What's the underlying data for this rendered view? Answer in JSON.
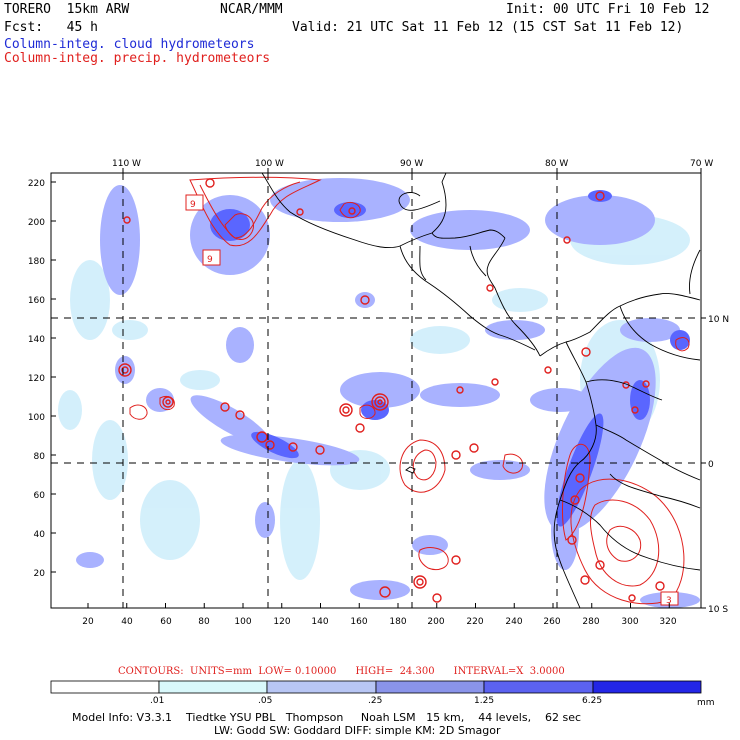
{
  "header": {
    "model": "TORERO  15km ARW",
    "center": "NCAR/MMM",
    "init": "Init: 00 UTC Fri 10 Feb 12",
    "fcst": "Fcst:   45 h",
    "valid": "Valid: 21 UTC Sat 11 Feb 12 (15 CST Sat 11 Feb 12)",
    "field1": "Column-integ. cloud hydrometeors",
    "field2": "Column-integ. precip. hydrometeors"
  },
  "colors": {
    "cloud_fill": "#a9b2ff",
    "cloud_light": "#cfeefb",
    "cloud_dark": "#4a5bff",
    "precip": "#e0201e"
  },
  "top_lon_labels": [
    "110 W",
    "100 W",
    "90 W",
    "80 W",
    "70 W"
  ],
  "right_lat_labels": [
    "10 N",
    "0",
    "10 S"
  ],
  "x_ticks": [
    "20",
    "40",
    "60",
    "80",
    "100",
    "120",
    "140",
    "160",
    "180",
    "200",
    "220",
    "240",
    "260",
    "280",
    "300",
    "320"
  ],
  "y_ticks": [
    "20",
    "40",
    "60",
    "80",
    "100",
    "120",
    "140",
    "160",
    "180",
    "200",
    "220"
  ],
  "contour_labels": [
    "9",
    "9",
    "3"
  ],
  "contours": {
    "units_label": "CONTOURS:  UNITS=mm  LOW= 0.10000      HIGH=  24.300      INTERVAL=X  3.0000"
  },
  "colorbar": {
    "labels": [
      ".01",
      ".05",
      ".25",
      "1.25",
      "6.25"
    ],
    "unit": "mm",
    "colors": [
      "#ffffff",
      "#d9f8fb",
      "#b8c6f4",
      "#8a94ea",
      "#5b62f0",
      "#2326e6"
    ]
  },
  "footer": {
    "line1": "Model Info: V3.3.1    Tiedtke YSU PBL   Thompson     Noah LSM   15 km,    44 levels,    62 sec",
    "line2": "LW: Godd SW: Goddard DIFF: simple KM: 2D Smagor"
  }
}
